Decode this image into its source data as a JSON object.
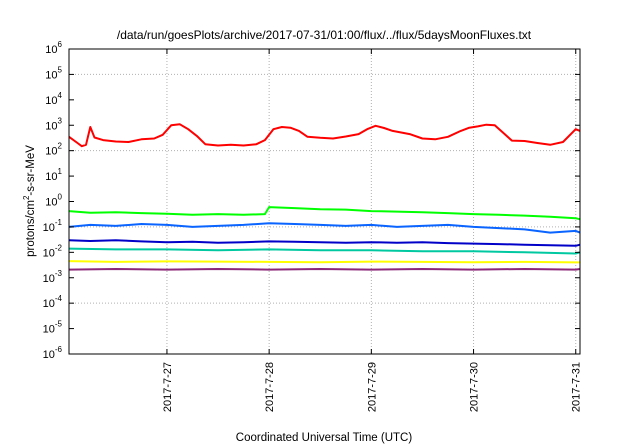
{
  "chart_data": {
    "type": "line",
    "title": "/data/run/goesPlots/archive/2017-07-31/01:00/flux/../flux/5daysMoonFluxes.txt",
    "xlabel": "Coordinated Universal Time (UTC)",
    "ylabel_base": "protons/cm",
    "ylabel_sup": "2",
    "ylabel_tail": "-s-sr-MeV",
    "yscale": "log",
    "ylim": [
      1e-06,
      1000000.0
    ],
    "xlim": [
      "2017-07-26 01:00",
      "2017-07-31 01:00"
    ],
    "y_ticks": [
      {
        "value": 1e-06,
        "base": "10",
        "exp": "-6"
      },
      {
        "value": 1e-05,
        "base": "10",
        "exp": "-5"
      },
      {
        "value": 0.0001,
        "base": "10",
        "exp": "-4"
      },
      {
        "value": 0.001,
        "base": "10",
        "exp": "-3"
      },
      {
        "value": 0.01,
        "base": "10",
        "exp": "-2"
      },
      {
        "value": 0.1,
        "base": "10",
        "exp": "-1"
      },
      {
        "value": 1.0,
        "base": "10",
        "exp": "0"
      },
      {
        "value": 10.0,
        "base": "10",
        "exp": "1"
      },
      {
        "value": 100.0,
        "base": "10",
        "exp": "2"
      },
      {
        "value": 1000.0,
        "base": "10",
        "exp": "3"
      },
      {
        "value": 10000.0,
        "base": "10",
        "exp": "4"
      },
      {
        "value": 100000.0,
        "base": "10",
        "exp": "5"
      },
      {
        "value": 1000000.0,
        "base": "10",
        "exp": "6"
      }
    ],
    "x_ticks": [
      {
        "label": "2017-7-27",
        "value": "2017-07-27 00:00"
      },
      {
        "label": "2017-7-28",
        "value": "2017-07-28 00:00"
      },
      {
        "label": "2017-7-29",
        "value": "2017-07-29 00:00"
      },
      {
        "label": "2017-7-30",
        "value": "2017-07-30 00:00"
      },
      {
        "label": "2017-7-31",
        "value": "2017-07-31 00:00"
      }
    ],
    "grid": true,
    "series": [
      {
        "color": "#ff0000",
        "x": [
          "2017-07-26 01:00",
          "2017-07-26 03:00",
          "2017-07-26 04:00",
          "2017-07-26 05:00",
          "2017-07-26 06:00",
          "2017-07-26 07:00",
          "2017-07-26 09:00",
          "2017-07-26 12:00",
          "2017-07-26 15:00",
          "2017-07-26 18:00",
          "2017-07-26 21:00",
          "2017-07-26 23:00",
          "2017-07-27 01:00",
          "2017-07-27 03:00",
          "2017-07-27 05:00",
          "2017-07-27 07:00",
          "2017-07-27 09:00",
          "2017-07-27 12:00",
          "2017-07-27 15:00",
          "2017-07-27 18:00",
          "2017-07-27 21:00",
          "2017-07-27 23:00",
          "2017-07-28 01:00",
          "2017-07-28 03:00",
          "2017-07-28 05:00",
          "2017-07-28 07:00",
          "2017-07-28 09:00",
          "2017-07-28 12:00",
          "2017-07-28 15:00",
          "2017-07-28 18:00",
          "2017-07-28 21:00",
          "2017-07-28 23:00",
          "2017-07-29 01:00",
          "2017-07-29 03:00",
          "2017-07-29 05:00",
          "2017-07-29 07:00",
          "2017-07-29 09:00",
          "2017-07-29 12:00",
          "2017-07-29 15:00",
          "2017-07-29 18:00",
          "2017-07-29 21:00",
          "2017-07-29 23:00",
          "2017-07-30 01:00",
          "2017-07-30 03:00",
          "2017-07-30 05:00",
          "2017-07-30 07:00",
          "2017-07-30 09:00",
          "2017-07-30 12:00",
          "2017-07-30 15:00",
          "2017-07-30 18:00",
          "2017-07-30 21:00",
          "2017-07-31 00:00",
          "2017-07-31 01:00"
        ],
        "y": [
          350,
          200,
          150,
          170,
          850,
          330,
          260,
          230,
          220,
          280,
          300,
          420,
          1000,
          1100,
          700,
          380,
          180,
          160,
          170,
          160,
          180,
          260,
          700,
          850,
          800,
          600,
          350,
          320,
          300,
          360,
          450,
          700,
          950,
          780,
          600,
          520,
          450,
          300,
          280,
          350,
          600,
          800,
          900,
          1050,
          1000,
          500,
          250,
          240,
          200,
          170,
          220,
          700,
          600
        ]
      },
      {
        "color": "#00ff00",
        "x": [
          "2017-07-26 01:00",
          "2017-07-26 06:00",
          "2017-07-26 12:00",
          "2017-07-26 18:00",
          "2017-07-27 00:00",
          "2017-07-27 06:00",
          "2017-07-27 12:00",
          "2017-07-27 18:00",
          "2017-07-27 23:00",
          "2017-07-28 00:00",
          "2017-07-28 06:00",
          "2017-07-28 12:00",
          "2017-07-28 18:00",
          "2017-07-29 00:00",
          "2017-07-29 06:00",
          "2017-07-29 12:00",
          "2017-07-29 18:00",
          "2017-07-30 00:00",
          "2017-07-30 06:00",
          "2017-07-30 12:00",
          "2017-07-30 18:00",
          "2017-07-31 00:00",
          "2017-07-31 01:00"
        ],
        "y": [
          0.42,
          0.36,
          0.38,
          0.35,
          0.33,
          0.3,
          0.32,
          0.3,
          0.32,
          0.6,
          0.55,
          0.5,
          0.48,
          0.42,
          0.4,
          0.38,
          0.35,
          0.32,
          0.3,
          0.28,
          0.25,
          0.22,
          0.2
        ]
      },
      {
        "color": "#0a64ff",
        "x": [
          "2017-07-26 01:00",
          "2017-07-26 06:00",
          "2017-07-26 12:00",
          "2017-07-26 18:00",
          "2017-07-27 00:00",
          "2017-07-27 06:00",
          "2017-07-27 12:00",
          "2017-07-27 18:00",
          "2017-07-28 00:00",
          "2017-07-28 06:00",
          "2017-07-28 12:00",
          "2017-07-28 18:00",
          "2017-07-29 00:00",
          "2017-07-29 06:00",
          "2017-07-29 12:00",
          "2017-07-29 18:00",
          "2017-07-30 00:00",
          "2017-07-30 06:00",
          "2017-07-30 12:00",
          "2017-07-30 18:00",
          "2017-07-31 00:00",
          "2017-07-31 01:00"
        ],
        "y": [
          0.1,
          0.12,
          0.11,
          0.13,
          0.12,
          0.1,
          0.11,
          0.12,
          0.14,
          0.13,
          0.12,
          0.11,
          0.12,
          0.1,
          0.11,
          0.12,
          0.1,
          0.09,
          0.08,
          0.06,
          0.07,
          0.06
        ]
      },
      {
        "color": "#0000c8",
        "x": [
          "2017-07-26 01:00",
          "2017-07-26 06:00",
          "2017-07-26 12:00",
          "2017-07-26 18:00",
          "2017-07-27 00:00",
          "2017-07-27 06:00",
          "2017-07-27 12:00",
          "2017-07-27 18:00",
          "2017-07-28 00:00",
          "2017-07-28 06:00",
          "2017-07-28 12:00",
          "2017-07-28 18:00",
          "2017-07-29 00:00",
          "2017-07-29 06:00",
          "2017-07-29 12:00",
          "2017-07-29 18:00",
          "2017-07-30 00:00",
          "2017-07-30 06:00",
          "2017-07-30 12:00",
          "2017-07-30 18:00",
          "2017-07-31 00:00",
          "2017-07-31 01:00"
        ],
        "y": [
          0.03,
          0.028,
          0.03,
          0.027,
          0.025,
          0.026,
          0.024,
          0.025,
          0.027,
          0.026,
          0.025,
          0.024,
          0.025,
          0.024,
          0.025,
          0.023,
          0.022,
          0.021,
          0.02,
          0.019,
          0.018,
          0.02
        ]
      },
      {
        "color": "#00c8a0",
        "x": [
          "2017-07-26 01:00",
          "2017-07-26 12:00",
          "2017-07-27 00:00",
          "2017-07-27 12:00",
          "2017-07-28 00:00",
          "2017-07-28 12:00",
          "2017-07-29 00:00",
          "2017-07-29 12:00",
          "2017-07-30 00:00",
          "2017-07-30 12:00",
          "2017-07-31 00:00",
          "2017-07-31 01:00"
        ],
        "y": [
          0.014,
          0.013,
          0.013,
          0.012,
          0.013,
          0.012,
          0.012,
          0.011,
          0.011,
          0.01,
          0.009,
          0.01
        ]
      },
      {
        "color": "#ffff00",
        "x": [
          "2017-07-26 01:00",
          "2017-07-26 12:00",
          "2017-07-27 00:00",
          "2017-07-27 12:00",
          "2017-07-28 00:00",
          "2017-07-28 12:00",
          "2017-07-29 00:00",
          "2017-07-29 12:00",
          "2017-07-30 00:00",
          "2017-07-30 12:00",
          "2017-07-31 00:00",
          "2017-07-31 01:00"
        ],
        "y": [
          0.0045,
          0.0042,
          0.0044,
          0.0043,
          0.0042,
          0.0041,
          0.0043,
          0.0042,
          0.0041,
          0.0042,
          0.004,
          0.004
        ]
      },
      {
        "color": "#8c2878",
        "x": [
          "2017-07-26 01:00",
          "2017-07-26 12:00",
          "2017-07-27 00:00",
          "2017-07-27 12:00",
          "2017-07-28 00:00",
          "2017-07-28 12:00",
          "2017-07-29 00:00",
          "2017-07-29 12:00",
          "2017-07-30 00:00",
          "2017-07-30 12:00",
          "2017-07-31 00:00",
          "2017-07-31 01:00"
        ],
        "y": [
          0.0021,
          0.0022,
          0.0021,
          0.0022,
          0.0021,
          0.0022,
          0.0021,
          0.0022,
          0.0021,
          0.0022,
          0.0021,
          0.0022
        ]
      }
    ]
  }
}
